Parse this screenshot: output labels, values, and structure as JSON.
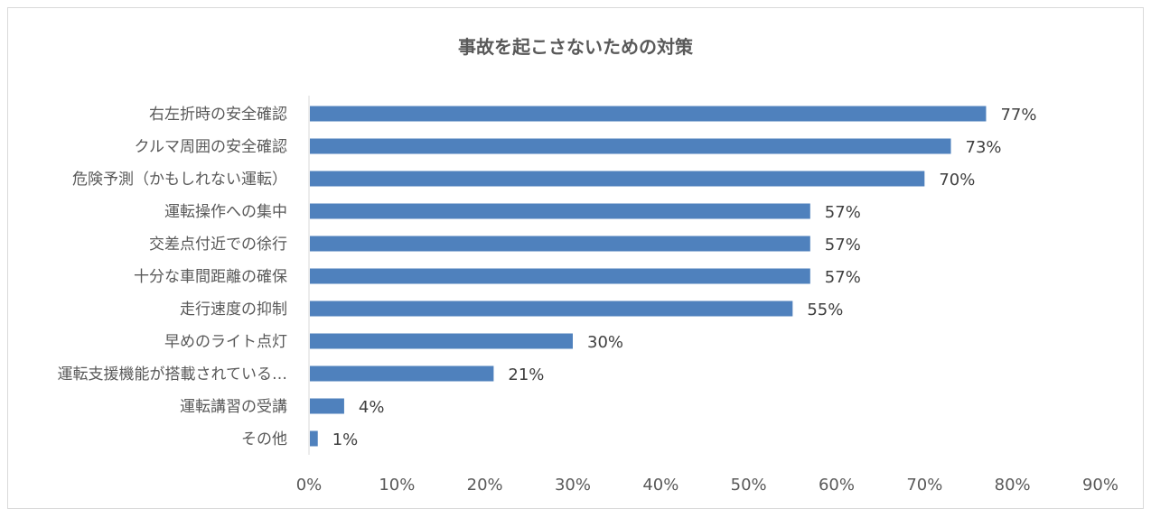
{
  "chart_data": {
    "type": "bar",
    "orientation": "horizontal",
    "title": "事故を起こさないための対策",
    "categories": [
      "右左折時の安全確認",
      "クルマ周囲の安全確認",
      "危険予測（かもしれない運転）",
      "運転操作への集中",
      "交差点付近での徐行",
      "十分な車間距離の確保",
      "走行速度の抑制",
      "早めのライト点灯",
      "運転支援機能が搭載されている…",
      "運転講習の受講",
      "その他"
    ],
    "values": [
      77,
      73,
      70,
      57,
      57,
      57,
      55,
      30,
      21,
      4,
      1
    ],
    "value_labels": [
      "77%",
      "73%",
      "70%",
      "57%",
      "57%",
      "57%",
      "55%",
      "30%",
      "21%",
      "4%",
      "1%"
    ],
    "xlim": [
      0,
      90
    ],
    "x_ticks": [
      "0%",
      "10%",
      "20%",
      "30%",
      "40%",
      "50%",
      "60%",
      "70%",
      "80%",
      "90%"
    ],
    "grid": false,
    "legend": "none",
    "bar_color": "#4f81bd",
    "axis_color": "#d9d9d9"
  }
}
